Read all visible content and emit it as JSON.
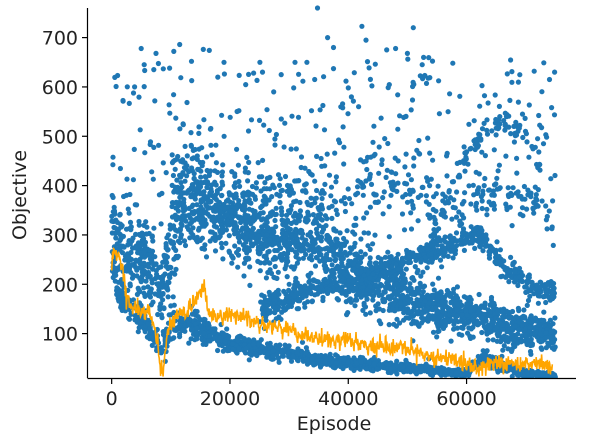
{
  "chart_data": {
    "type": "scatter",
    "title": "",
    "xlabel": "Episode",
    "ylabel": "Objective",
    "xlim": [
      -4000,
      78500
    ],
    "ylim": [
      10,
      760
    ],
    "xticks": [
      0,
      20000,
      40000,
      60000
    ],
    "yticks": [
      100,
      200,
      300,
      400,
      500,
      600,
      700
    ],
    "grid": false,
    "legend": "none",
    "colors": {
      "scatter": "#1f77b4",
      "line": "#ffa500"
    },
    "series": [
      {
        "kind": "scatter",
        "trend_bands": [
          {
            "x": [
              0,
              1000,
              3000,
              5000,
              7500,
              9000,
              10500,
              13000,
              16000,
              20000,
              25000,
              30000,
              35000,
              40000,
              45000,
              50000,
              55000,
              60000,
              65000,
              70000,
              75000
            ],
            "center": [
              330,
              280,
              270,
              250,
              210,
              200,
              320,
              380,
              360,
              330,
              300,
              290,
              280,
              230,
              200,
              170,
              150,
              140,
              120,
              110,
              100
            ],
            "spread": [
              60,
              90,
              90,
              80,
              80,
              100,
              110,
              100,
              90,
              80,
              70,
              70,
              80,
              70,
              60,
              60,
              50,
              40,
              40,
              40,
              30
            ],
            "weight": 3
          },
          {
            "x": [
              0,
              1000,
              3000,
              6000,
              8500,
              10000,
              15000,
              20000,
              30000,
              40000,
              50000,
              60000,
              63000,
              66000,
              70000,
              75000
            ],
            "center": [
              260,
              180,
              160,
              120,
              60,
              120,
              110,
              80,
              60,
              40,
              30,
              20,
              55,
              30,
              20,
              15
            ],
            "spread": [
              40,
              30,
              30,
              30,
              30,
              30,
              25,
              20,
              15,
              12,
              10,
              8,
              15,
              10,
              8,
              6
            ],
            "weight": 2
          },
          {
            "x": [
              25000,
              35000,
              45000,
              55000,
              62000,
              66000,
              70000,
              75000
            ],
            "center": [
              150,
              190,
              230,
              270,
              300,
              240,
              200,
              180
            ],
            "spread": [
              25,
              25,
              25,
              25,
              25,
              25,
              30,
              25
            ],
            "weight": 1
          },
          {
            "x": [
              10000,
              20000,
              35000,
              45000,
              55000,
              65000,
              70000,
              75000
            ],
            "center": [
              400,
              380,
              360,
              400,
              350,
              380,
              370,
              330
            ],
            "spread": [
              90,
              70,
              60,
              80,
              60,
              40,
              40,
              30
            ],
            "weight": 0.5
          }
        ],
        "outliers": [
          {
            "x": 5000,
            "y": 678
          },
          {
            "x": 5500,
            "y": 645
          },
          {
            "x": 7500,
            "y": 668
          },
          {
            "x": 10500,
            "y": 672
          },
          {
            "x": 11500,
            "y": 686
          },
          {
            "x": 13500,
            "y": 652
          },
          {
            "x": 15500,
            "y": 676
          },
          {
            "x": 16500,
            "y": 674
          },
          {
            "x": 19000,
            "y": 650
          },
          {
            "x": 24000,
            "y": 628
          },
          {
            "x": 25500,
            "y": 630
          },
          {
            "x": 31000,
            "y": 650
          },
          {
            "x": 33000,
            "y": 650
          },
          {
            "x": 34800,
            "y": 760
          },
          {
            "x": 36500,
            "y": 700
          },
          {
            "x": 37500,
            "y": 680
          },
          {
            "x": 42300,
            "y": 723
          },
          {
            "x": 43000,
            "y": 695
          },
          {
            "x": 46500,
            "y": 675
          },
          {
            "x": 48000,
            "y": 678
          },
          {
            "x": 50000,
            "y": 668
          },
          {
            "x": 51000,
            "y": 720
          },
          {
            "x": 52500,
            "y": 645
          },
          {
            "x": 53500,
            "y": 618
          },
          {
            "x": 40000,
            "y": 598
          },
          {
            "x": 44000,
            "y": 602
          },
          {
            "x": 68000,
            "y": 520
          },
          {
            "x": 69000,
            "y": 522
          },
          {
            "x": 72000,
            "y": 495
          },
          {
            "x": 73000,
            "y": 485
          }
        ],
        "arcs": [
          {
            "x0": 53000,
            "x1": 73000,
            "peak_x": 66000,
            "peak_y": 520,
            "base_y": 350
          }
        ]
      },
      {
        "kind": "line",
        "x": [
          0,
          500,
          1500,
          2500,
          3500,
          5000,
          6500,
          7500,
          8200,
          8700,
          9500,
          11000,
          13000,
          14500,
          15500,
          16500,
          18000,
          20000,
          23000,
          26000,
          30000,
          33000,
          36000,
          40000,
          44000,
          48000,
          52000,
          56000,
          60000,
          62000,
          64000,
          67000,
          70000,
          73000,
          74500
        ],
        "y": [
          240,
          268,
          250,
          180,
          150,
          148,
          140,
          95,
          40,
          20,
          110,
          135,
          150,
          170,
          200,
          140,
          130,
          140,
          130,
          120,
          105,
          95,
          85,
          85,
          75,
          70,
          60,
          50,
          40,
          30,
          38,
          42,
          38,
          40,
          30
        ]
      }
    ]
  }
}
